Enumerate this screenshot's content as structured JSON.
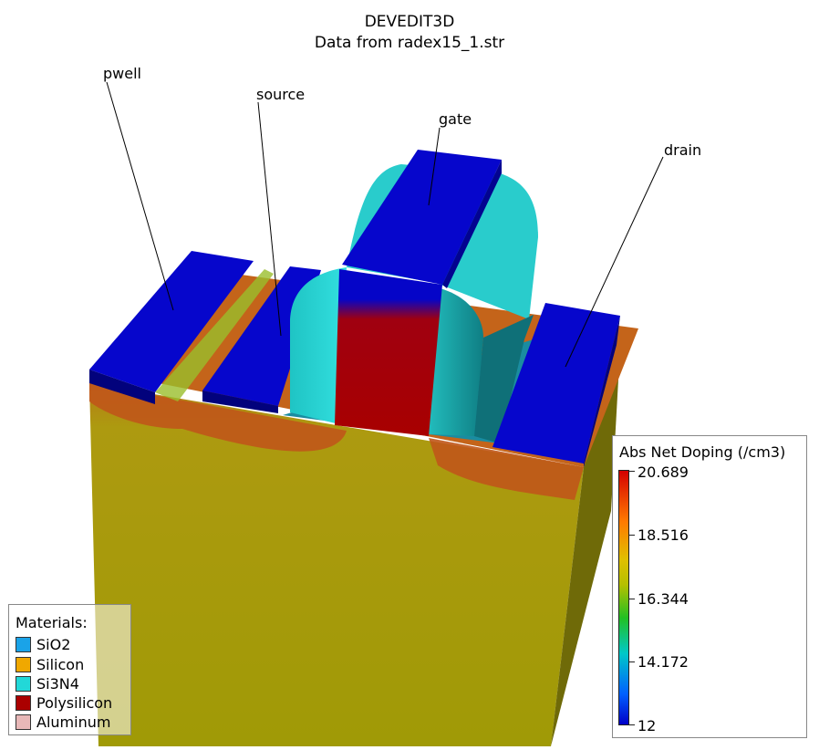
{
  "title": {
    "line1": "DEVEDIT3D",
    "line2": "Data from radex15_1.str"
  },
  "labels": {
    "pwell": "pwell",
    "source": "source",
    "gate": "gate",
    "drain": "drain"
  },
  "materials": {
    "title": "Materials:",
    "items": [
      {
        "label": "SiO2",
        "color": "#1aa3e8"
      },
      {
        "label": "Silicon",
        "color": "#f0a800"
      },
      {
        "label": "Si3N4",
        "color": "#22d8d8"
      },
      {
        "label": "Polysilicon",
        "color": "#aa0000"
      },
      {
        "label": "Aluminum",
        "color": "#e8b8b8"
      }
    ]
  },
  "colorbar": {
    "title": "Abs Net Doping (/cm3)",
    "ticks": [
      "20.689",
      "18.516",
      "16.344",
      "14.172",
      "12"
    ]
  },
  "colors": {
    "electrode": "#0505c8",
    "silicon_bulk": "#a49a0c",
    "doped_region": "#c25a14",
    "nitride": "#22c8c8",
    "polysilicon": "#a80000"
  }
}
